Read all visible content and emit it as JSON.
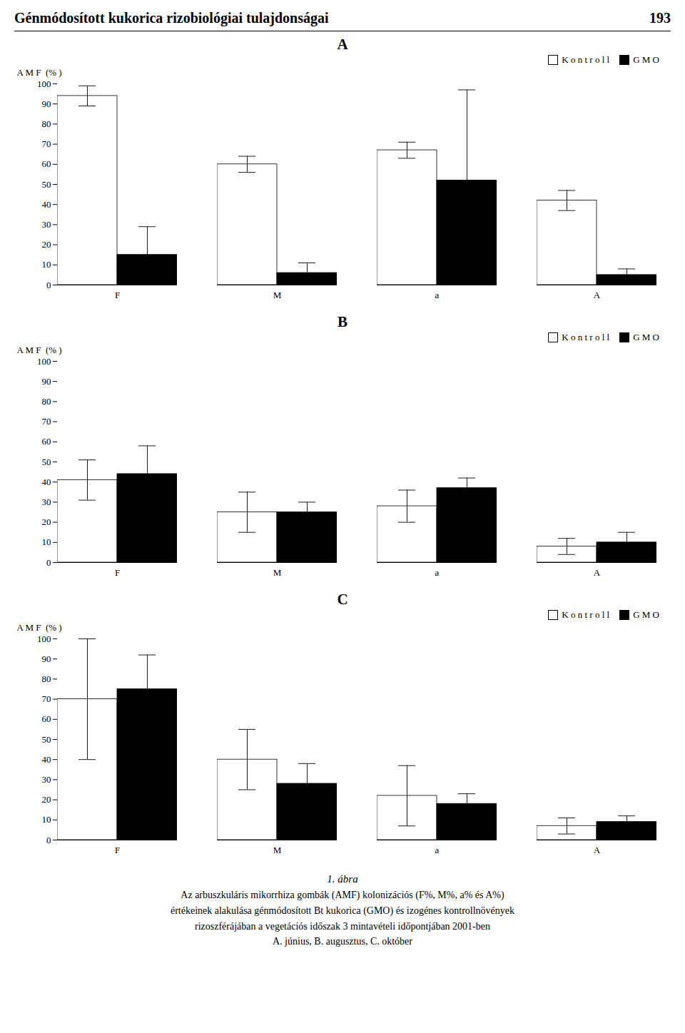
{
  "title": "Génmódosított kukorica rizobiológiai tulajdonságai",
  "annotations": [
    "193"
  ],
  "caption": [
    "1. ábra",
    "Az arbuszkuláris mikorrhiza gombák (AMF) kolonizációs (F%, M%, a% és A%)",
    "értékeinek alakulása génmódosított Bt kukorica (GMO) és izogénes kontrollnövények",
    "rizoszférájában a vegetációs időszak 3 mintavételi időpontjában 2001-ben",
    "A. június, B. augusztus, C. október"
  ],
  "chart_data": [
    {
      "type": "bar",
      "title": "A",
      "y_label": "A M F  (% )",
      "categories": [
        "F",
        "M",
        "a",
        "A"
      ],
      "series": [
        {
          "name": "K o n t r o l l",
          "color": "white",
          "values": [
            94,
            60,
            67,
            42
          ],
          "errors": [
            5,
            4,
            4,
            5
          ]
        },
        {
          "name": "G M O",
          "color": "black",
          "values": [
            15,
            6,
            52,
            5
          ],
          "errors": [
            14,
            5,
            45,
            3
          ]
        }
      ],
      "ylim": [
        0,
        100
      ],
      "yticks": [
        0,
        10,
        20,
        30,
        40,
        50,
        60,
        70,
        80,
        90,
        100
      ],
      "grid": false,
      "legend": "upper right"
    },
    {
      "type": "bar",
      "title": "B",
      "y_label": "A M F  (% )",
      "categories": [
        "F",
        "M",
        "a",
        "A"
      ],
      "series": [
        {
          "name": "K o n t r o l l",
          "color": "white",
          "values": [
            41,
            25,
            28,
            8
          ],
          "errors": [
            10,
            10,
            8,
            4
          ]
        },
        {
          "name": "G M O",
          "color": "black",
          "values": [
            44,
            25,
            37,
            10
          ],
          "errors": [
            14,
            5,
            5,
            5
          ]
        }
      ],
      "ylim": [
        0,
        100
      ],
      "yticks": [
        0,
        10,
        20,
        30,
        40,
        50,
        60,
        70,
        80,
        90,
        100
      ],
      "grid": false,
      "legend": "upper right"
    },
    {
      "type": "bar",
      "title": "C",
      "y_label": "A M F  (% )",
      "categories": [
        "F",
        "M",
        "a",
        "A"
      ],
      "series": [
        {
          "name": "K o n t r o l l",
          "color": "white",
          "values": [
            70,
            40,
            22,
            7
          ],
          "errors": [
            30,
            15,
            15,
            4
          ]
        },
        {
          "name": "G M O",
          "color": "black",
          "values": [
            75,
            28,
            18,
            9
          ],
          "errors": [
            17,
            10,
            5,
            3
          ]
        }
      ],
      "ylim": [
        0,
        100
      ],
      "yticks": [
        0,
        10,
        20,
        30,
        40,
        50,
        60,
        70,
        80,
        90,
        100
      ],
      "grid": false,
      "legend": "upper right"
    }
  ]
}
